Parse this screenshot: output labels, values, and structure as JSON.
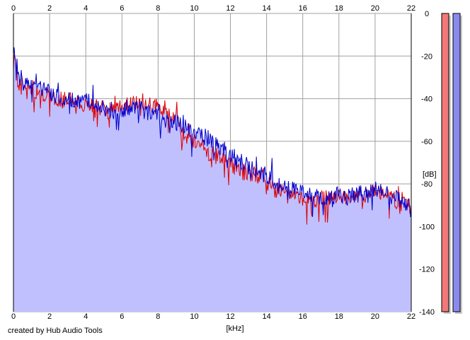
{
  "credit": "created by Hub Audio Tools",
  "colors": {
    "fill": "#c0c0ff",
    "left_channel": "#e00000",
    "right_channel": "#0000cc",
    "grid": "#a0a0a0",
    "meter_left": "#f07878",
    "meter_right": "#8a8aee"
  },
  "chart_data": {
    "type": "line",
    "title": "",
    "xlabel": "[kHz]",
    "ylabel": "[dB]",
    "xlim": [
      0,
      22
    ],
    "ylim": [
      -140,
      0
    ],
    "x_ticks": [
      "0",
      "2",
      "4",
      "6",
      "8",
      "10",
      "12",
      "14",
      "16",
      "18",
      "20",
      "22"
    ],
    "y_ticks": [
      "0",
      "-20",
      "-40",
      "-60",
      "-80",
      "-100",
      "-120",
      "-140"
    ],
    "grid": true,
    "x_unit": "kHz",
    "y_unit": "dB",
    "series": [
      {
        "color": "#e00000",
        "x": [
          0,
          0.2,
          0.5,
          1,
          1.5,
          2,
          2.5,
          3,
          3.5,
          4,
          4.5,
          5,
          5.5,
          6,
          6.5,
          7,
          7.5,
          8,
          8.5,
          9,
          9.5,
          10,
          10.5,
          11,
          11.5,
          12,
          12.5,
          13,
          13.5,
          14,
          14.5,
          15,
          15.5,
          16,
          16.5,
          17,
          17.5,
          18,
          18.5,
          19,
          19.5,
          20,
          20.5,
          21,
          21.5,
          22
        ],
        "values": [
          -20,
          -26,
          -33,
          -35,
          -37,
          -38,
          -40,
          -41,
          -42,
          -42,
          -43,
          -45,
          -46,
          -43,
          -42,
          -42,
          -43,
          -44,
          -45,
          -50,
          -57,
          -60,
          -63,
          -66,
          -68,
          -71,
          -74,
          -75,
          -76,
          -79,
          -82,
          -85,
          -86,
          -88,
          -88,
          -87,
          -86,
          -85,
          -86,
          -86,
          -85,
          -84,
          -85,
          -87,
          -89,
          -91
        ]
      },
      {
        "color": "#0000cc",
        "x": [
          0,
          0.2,
          0.5,
          1,
          1.5,
          2,
          2.5,
          3,
          3.5,
          4,
          4.5,
          5,
          5.5,
          6,
          6.5,
          7,
          7.5,
          8,
          8.5,
          9,
          9.5,
          10,
          10.5,
          11,
          11.5,
          12,
          12.5,
          13,
          13.5,
          14,
          14.5,
          15,
          15.5,
          16,
          16.5,
          17,
          17.5,
          18,
          18.5,
          19,
          19.5,
          20,
          20.5,
          21,
          21.5,
          22
        ],
        "values": [
          -18,
          -24,
          -32,
          -34,
          -35,
          -37,
          -39,
          -40,
          -41,
          -41,
          -42,
          -44,
          -46,
          -45,
          -44,
          -45,
          -47,
          -48,
          -50,
          -51,
          -53,
          -55,
          -57,
          -60,
          -63,
          -66,
          -69,
          -72,
          -74,
          -76,
          -78,
          -80,
          -82,
          -84,
          -85,
          -86,
          -86,
          -85,
          -86,
          -85,
          -84,
          -82,
          -84,
          -86,
          -89,
          -92
        ]
      }
    ]
  },
  "meters": [
    {
      "channel": "left",
      "level": 1.0
    },
    {
      "channel": "right",
      "level": 1.0
    }
  ]
}
